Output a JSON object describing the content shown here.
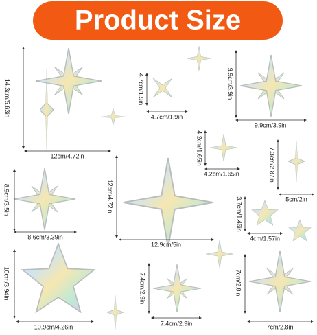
{
  "header": {
    "title": "Product Size"
  },
  "dimensions": [
    "14.3cm/5.63in",
    "12cm/4.72in",
    "4.7cm/1.9in",
    "4.7cm/1.9in",
    "9.9cm/3.9in",
    "9.9cm/3.9in",
    "4.2cm/1.65in",
    "4.2cm/1.65in",
    "7.3cm/2.87in",
    "5cm/2in",
    "8.9cm/3.5in",
    "8.6cm/3.39in",
    "12cm/4.72in",
    "12.9cm/5in",
    "3.7cm/1.46in",
    "4cm/1.57in",
    "10cm/3.94in",
    "10.9cm/4.26in",
    "7.4cm/2.9in",
    "7.4cm/2.9in",
    "7cm/2.8in",
    "7cm/2.8in"
  ]
}
